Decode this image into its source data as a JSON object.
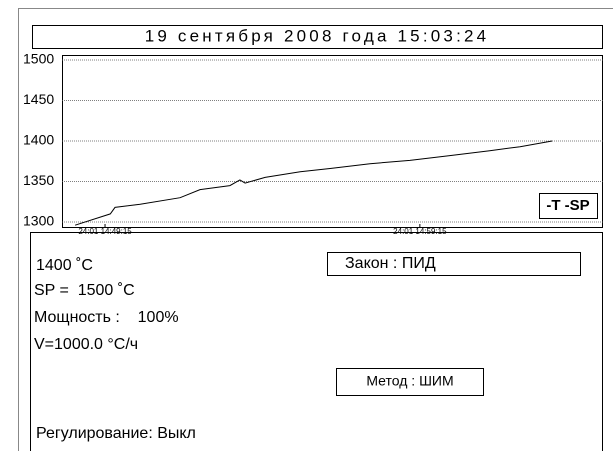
{
  "header": {
    "datetime": "19 сентября 2008 года 15:03:24"
  },
  "chart_data": {
    "type": "line",
    "series": [
      {
        "name": "T",
        "color": "#000000",
        "x": [
          53298,
          53365,
          53374,
          53422,
          53498,
          53536,
          53593,
          53612,
          53622,
          53660,
          53727,
          53784,
          53860,
          53936,
          54012,
          54088,
          54146,
          54207
        ],
        "values": [
          1296,
          1310,
          1318,
          1322,
          1330,
          1340,
          1345,
          1352,
          1348,
          1355,
          1362,
          1366,
          1372,
          1376,
          1382,
          1388,
          1393,
          1400
        ]
      }
    ],
    "legend_text": "-T -SP",
    "xlim": [
      53273,
      54304
    ],
    "xticks": [
      {
        "value": 53355,
        "label": "24:01 14:49:15"
      },
      {
        "value": 53955,
        "label": "24:01 14:59:15"
      }
    ],
    "ylim": [
      1300,
      1500
    ],
    "yticks": [
      1300,
      1350,
      1400,
      1450,
      1500
    ],
    "grid": true
  },
  "status": {
    "temperature": "1400 ˚C",
    "setpoint": "SP =  1500 ˚C",
    "power": "Мощность :    100%",
    "rate": "V=1000.0 °C/ч",
    "law": "Закон : ПИД",
    "method": "Метод : ШИМ",
    "regulation": "Регулирование: Выкл"
  }
}
